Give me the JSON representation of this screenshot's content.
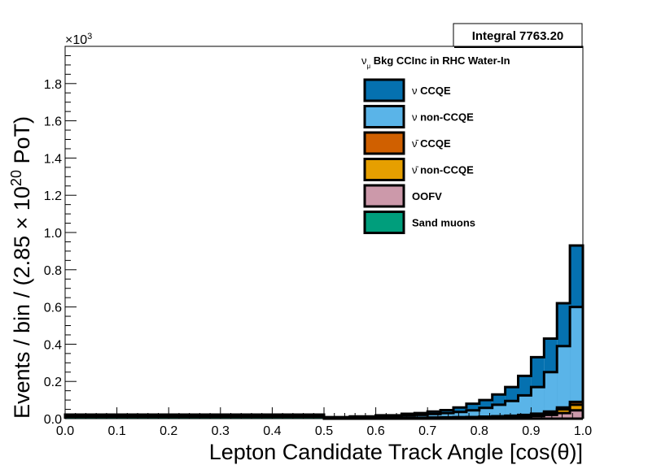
{
  "chart_data": {
    "type": "bar",
    "subtype": "stacked-histogram",
    "title": "",
    "xlabel": "Lepton Candidate Track Angle [cos(θ)]",
    "ylabel": "Events / bin / (2.85 × 10^20 PoT)",
    "ylabel_parts": {
      "main": "Events / bin / (2.85 × 10",
      "exp": "20",
      "tail": " PoT)"
    },
    "y_multiplier": {
      "prefix": "×10",
      "exp": "3"
    },
    "xlim": [
      0.0,
      1.0
    ],
    "ylim": [
      0.0,
      2.0
    ],
    "xticks": [
      "0.0",
      "0.1",
      "0.2",
      "0.3",
      "0.4",
      "0.5",
      "0.6",
      "0.7",
      "0.8",
      "0.9",
      "1.0"
    ],
    "yticks": [
      "0.0",
      "0.2",
      "0.4",
      "0.6",
      "0.8",
      "1.0",
      "1.2",
      "1.4",
      "1.6",
      "1.8"
    ],
    "integral_label": "Integral 7763.20",
    "legend_header": {
      "main": "ν",
      "sub": "μ",
      "text": " Bkg CCInc in RHC Water-In"
    },
    "legend_position": "top-right",
    "grid": false,
    "bins": [
      {
        "lo": 0.0,
        "hi": 0.5,
        "cumulative": {
          "sand": 0.01,
          "oofv": 0.012,
          "antinonccqe": 0.014,
          "antiqe": 0.016,
          "nonccqe": 0.02,
          "ccqe": 0.022
        }
      },
      {
        "lo": 0.5,
        "hi": 0.55,
        "cumulative": {
          "sand": 0.0,
          "oofv": 0.001,
          "antinonccqe": 0.002,
          "antiqe": 0.003,
          "nonccqe": 0.006,
          "ccqe": 0.008
        }
      },
      {
        "lo": 0.55,
        "hi": 0.6,
        "cumulative": {
          "sand": 0.0,
          "oofv": 0.002,
          "antinonccqe": 0.003,
          "antiqe": 0.004,
          "nonccqe": 0.008,
          "ccqe": 0.012
        }
      },
      {
        "lo": 0.6,
        "hi": 0.65,
        "cumulative": {
          "sand": 0.0,
          "oofv": 0.002,
          "antinonccqe": 0.003,
          "antiqe": 0.004,
          "nonccqe": 0.012,
          "ccqe": 0.018
        }
      },
      {
        "lo": 0.65,
        "hi": 0.675,
        "cumulative": {
          "sand": 0.0,
          "oofv": 0.002,
          "antinonccqe": 0.004,
          "antiqe": 0.005,
          "nonccqe": 0.018,
          "ccqe": 0.026
        }
      },
      {
        "lo": 0.675,
        "hi": 0.7,
        "cumulative": {
          "sand": 0.0,
          "oofv": 0.002,
          "antinonccqe": 0.004,
          "antiqe": 0.005,
          "nonccqe": 0.02,
          "ccqe": 0.03
        }
      },
      {
        "lo": 0.7,
        "hi": 0.725,
        "cumulative": {
          "sand": 0.0,
          "oofv": 0.003,
          "antinonccqe": 0.005,
          "antiqe": 0.006,
          "nonccqe": 0.025,
          "ccqe": 0.038
        }
      },
      {
        "lo": 0.725,
        "hi": 0.75,
        "cumulative": {
          "sand": 0.0,
          "oofv": 0.003,
          "antinonccqe": 0.005,
          "antiqe": 0.007,
          "nonccqe": 0.03,
          "ccqe": 0.046
        }
      },
      {
        "lo": 0.75,
        "hi": 0.775,
        "cumulative": {
          "sand": 0.0,
          "oofv": 0.004,
          "antinonccqe": 0.006,
          "antiqe": 0.008,
          "nonccqe": 0.036,
          "ccqe": 0.06
        }
      },
      {
        "lo": 0.775,
        "hi": 0.8,
        "cumulative": {
          "sand": 0.0,
          "oofv": 0.004,
          "antinonccqe": 0.007,
          "antiqe": 0.009,
          "nonccqe": 0.045,
          "ccqe": 0.08
        }
      },
      {
        "lo": 0.8,
        "hi": 0.825,
        "cumulative": {
          "sand": 0.0,
          "oofv": 0.005,
          "antinonccqe": 0.008,
          "antiqe": 0.011,
          "nonccqe": 0.058,
          "ccqe": 0.1
        }
      },
      {
        "lo": 0.825,
        "hi": 0.85,
        "cumulative": {
          "sand": 0.0,
          "oofv": 0.006,
          "antinonccqe": 0.01,
          "antiqe": 0.013,
          "nonccqe": 0.075,
          "ccqe": 0.13
        }
      },
      {
        "lo": 0.85,
        "hi": 0.875,
        "cumulative": {
          "sand": 0.0,
          "oofv": 0.008,
          "antinonccqe": 0.012,
          "antiqe": 0.016,
          "nonccqe": 0.095,
          "ccqe": 0.17
        }
      },
      {
        "lo": 0.875,
        "hi": 0.9,
        "cumulative": {
          "sand": 0.0,
          "oofv": 0.01,
          "antinonccqe": 0.016,
          "antiqe": 0.02,
          "nonccqe": 0.125,
          "ccqe": 0.23
        }
      },
      {
        "lo": 0.9,
        "hi": 0.925,
        "cumulative": {
          "sand": 0.0,
          "oofv": 0.014,
          "antinonccqe": 0.022,
          "antiqe": 0.027,
          "nonccqe": 0.17,
          "ccqe": 0.33
        }
      },
      {
        "lo": 0.925,
        "hi": 0.95,
        "cumulative": {
          "sand": 0.0,
          "oofv": 0.02,
          "antinonccqe": 0.032,
          "antiqe": 0.038,
          "nonccqe": 0.25,
          "ccqe": 0.43
        }
      },
      {
        "lo": 0.95,
        "hi": 0.975,
        "cumulative": {
          "sand": 0.0,
          "oofv": 0.03,
          "antinonccqe": 0.05,
          "antiqe": 0.06,
          "nonccqe": 0.39,
          "ccqe": 0.62
        }
      },
      {
        "lo": 0.975,
        "hi": 1.0,
        "cumulative": {
          "sand": 0.0,
          "oofv": 0.045,
          "antinonccqe": 0.075,
          "antiqe": 0.09,
          "nonccqe": 0.6,
          "ccqe": 0.93
        }
      }
    ],
    "bins_note_removed": true,
    "series": [
      {
        "key": "ccqe",
        "name": "ν CCQE",
        "color": "#0571b0"
      },
      {
        "key": "nonccqe",
        "name": "ν non-CCQE",
        "color": "#5ab4e8"
      },
      {
        "key": "antiqe",
        "name": "ν̄ CCQE",
        "color": "#d06000"
      },
      {
        "key": "antinonccqe",
        "name": "ν̄ non-CCQE",
        "color": "#e69f00"
      },
      {
        "key": "oofv",
        "name": "OOFV",
        "color": "#cc99aa"
      },
      {
        "key": "sand",
        "name": "Sand muons",
        "color": "#009e7c"
      }
    ],
    "legend_labels": [
      {
        "sym": "ν",
        "text": " CCQE"
      },
      {
        "sym": "ν",
        "text": " non-CCQE"
      },
      {
        "sym": "ν̄",
        "text": " CCQE"
      },
      {
        "sym": "ν̄",
        "text": " non-CCQE"
      },
      {
        "sym": "",
        "text": "OOFV"
      },
      {
        "sym": "",
        "text": "Sand muons"
      }
    ]
  }
}
